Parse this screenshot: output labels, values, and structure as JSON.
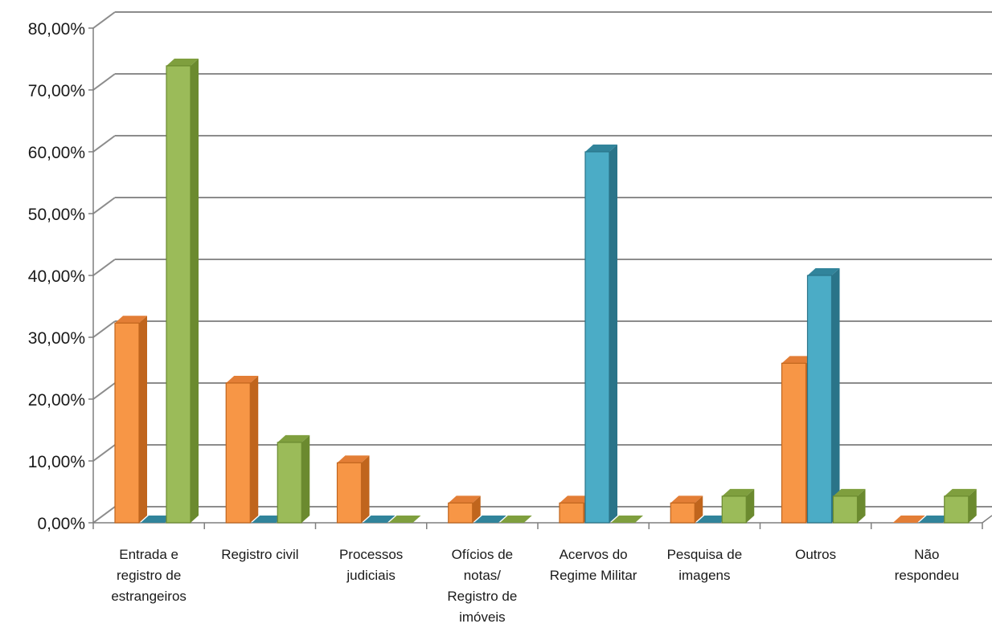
{
  "chart_data": {
    "type": "bar",
    "title": "",
    "xlabel": "",
    "ylabel": "",
    "ylim": [
      0,
      80
    ],
    "y_tick_values": [
      0,
      10,
      20,
      30,
      40,
      50,
      60,
      70,
      80
    ],
    "y_tick_labels": [
      "0,00%",
      "10,00%",
      "20,00%",
      "30,00%",
      "40,00%",
      "50,00%",
      "60,00%",
      "70,00%",
      "80,00%"
    ],
    "grid": true,
    "legend": "none",
    "style": "3d-clustered-column",
    "categories": [
      [
        "Entrada e",
        "registro de",
        "estrangeiros"
      ],
      [
        "Registro civil"
      ],
      [
        "Processos",
        "judiciais"
      ],
      [
        "Ofícios de",
        "notas/",
        "Registro de",
        "imóveis"
      ],
      [
        "Acervos do",
        "Regime Militar"
      ],
      [
        "Pesquisa de",
        "imagens"
      ],
      [
        "Outros"
      ],
      [
        "Não",
        "respondeu"
      ]
    ],
    "series": [
      {
        "color": "#f79646",
        "side": "#c0651d",
        "top": "#e37e36",
        "values": [
          32.3,
          22.6,
          9.7,
          3.2,
          3.2,
          3.2,
          25.8,
          0
        ]
      },
      {
        "color": "#4bacc6",
        "side": "#2a7489",
        "top": "#31849b",
        "values": [
          0,
          0,
          0,
          0,
          60,
          0,
          40,
          0
        ]
      },
      {
        "color": "#9bbb59",
        "side": "#6b8a2f",
        "top": "#7f9f3e",
        "values": [
          73.9,
          13,
          0,
          0,
          0,
          4.3,
          4.3,
          4.3
        ]
      }
    ]
  }
}
